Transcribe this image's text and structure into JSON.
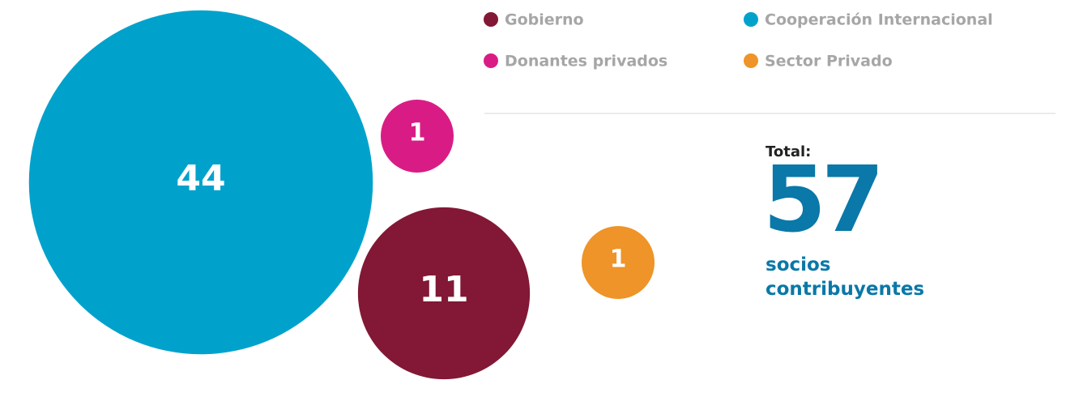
{
  "chart_data": {
    "type": "bubble",
    "series": [
      {
        "name": "Gobierno",
        "color": "#821835",
        "value": 11
      },
      {
        "name": "Cooperación Internacional",
        "color": "#00a2cc",
        "value": 44
      },
      {
        "name": "Donantes privados",
        "color": "#d91c85",
        "value": 1
      },
      {
        "name": "Sector Privado",
        "color": "#ee9428",
        "value": 1
      }
    ],
    "total": {
      "label": "Total:",
      "value": 57,
      "unit": "socios contribuyentes"
    }
  }
}
